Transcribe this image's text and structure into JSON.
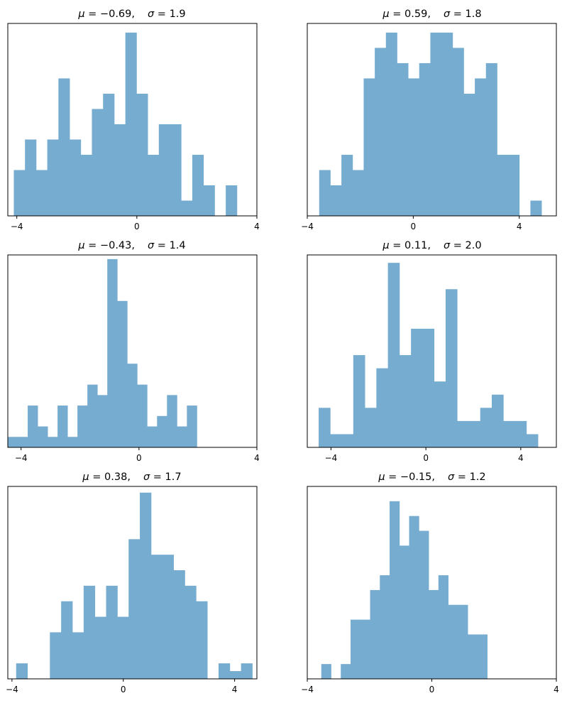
{
  "chart_data": [
    {
      "type": "bar",
      "title_mu": "−0.69,",
      "title_sigma": "1.9",
      "xlim": [
        -4.3,
        4
      ],
      "ylim": [
        0,
        12.6
      ],
      "xticks": [
        -4,
        0,
        4
      ],
      "xtick_labels": [
        "−4",
        "0",
        "4"
      ],
      "bins": {
        "start": -4.1,
        "width": 0.3717
      },
      "counts": [
        3,
        5,
        3,
        5,
        9,
        5,
        4,
        7,
        8,
        6,
        12,
        8,
        4,
        6,
        6,
        1,
        4,
        2,
        0,
        2
      ],
      "color": "#77acd1"
    },
    {
      "type": "bar",
      "title_mu": "0.59,",
      "title_sigma": "1.8",
      "xlim": [
        -4,
        5.4
      ],
      "ylim": [
        0,
        12.6
      ],
      "xticks": [
        -4,
        0,
        4
      ],
      "xtick_labels": [
        "−4",
        "0",
        "4"
      ],
      "bins": {
        "start": -3.55,
        "width": 0.4195
      },
      "counts": [
        3,
        2,
        4,
        3,
        9,
        11,
        12,
        10,
        9,
        10,
        12,
        12,
        11,
        8,
        9,
        10,
        4,
        4,
        0,
        1
      ],
      "color": "#77acd1"
    },
    {
      "type": "bar",
      "title_mu": "−0.43,",
      "title_sigma": "1.4",
      "xlim": [
        -4.45,
        4
      ],
      "ylim": [
        0,
        18.4
      ],
      "xticks": [
        -4,
        0,
        4
      ],
      "xtick_labels": [
        "−4",
        "0",
        "4"
      ],
      "bins": {
        "start": -4.45,
        "width": 0.3375
      },
      "counts": [
        1,
        1,
        4,
        2,
        1,
        4,
        1,
        4,
        6,
        5,
        18,
        14,
        8,
        6,
        2,
        3,
        5,
        2,
        4,
        0
      ],
      "color": "#77acd1"
    },
    {
      "type": "bar",
      "title_mu": "0.11,",
      "title_sigma": "2.0",
      "xlim": [
        -5.0,
        5.5
      ],
      "ylim": [
        0,
        14.6
      ],
      "xticks": [
        -4,
        0,
        4
      ],
      "xtick_labels": [
        "−4",
        "0",
        "4"
      ],
      "bins": {
        "start": -4.52,
        "width": 0.4865
      },
      "counts": [
        3,
        1,
        1,
        7,
        3,
        6,
        14,
        7,
        9,
        9,
        5,
        12,
        2,
        2,
        3,
        4,
        2,
        2,
        1,
        0
      ],
      "color": "#77acd1"
    },
    {
      "type": "bar",
      "title_mu": "0.38,",
      "title_sigma": "1.7",
      "xlim": [
        -4.15,
        4.8
      ],
      "ylim": [
        0,
        12.4
      ],
      "xticks": [
        -4,
        0,
        4
      ],
      "xtick_labels": [
        "−4",
        "0",
        "4"
      ],
      "bins": {
        "start": -3.85,
        "width": 0.404
      },
      "counts": [
        1,
        0,
        0,
        3,
        5,
        3,
        6,
        4,
        6,
        4,
        9,
        12,
        8,
        8,
        7,
        6,
        5,
        0,
        1,
        0.5,
        1
      ],
      "color": "#77acd1"
    },
    {
      "type": "bar",
      "title_mu": "−0.15,",
      "title_sigma": "1.2",
      "xlim": [
        -4,
        4
      ],
      "ylim": [
        0,
        13.0
      ],
      "xticks": [
        -4,
        0,
        4
      ],
      "xtick_labels": [
        "−4",
        "0",
        "4"
      ],
      "bins": {
        "start": -3.55,
        "width": 0.3135
      },
      "counts": [
        1,
        0,
        1,
        4,
        4,
        6,
        7,
        12,
        9,
        11,
        10,
        6,
        7,
        5,
        5,
        3,
        3,
        0
      ],
      "color": "#77acd1"
    }
  ]
}
